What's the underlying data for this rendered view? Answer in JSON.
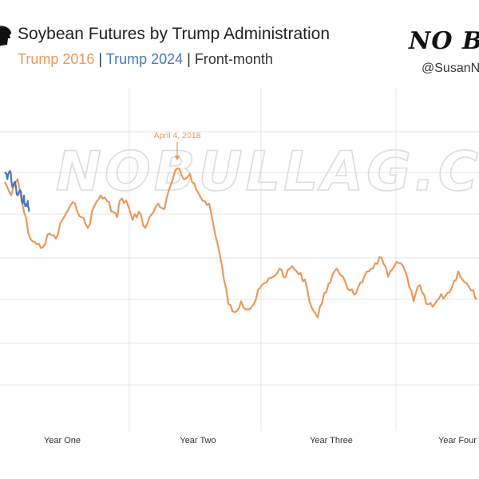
{
  "header": {
    "title": "Soybean Futures by Trump Administration",
    "subtitle_2016": "Trump 2016",
    "subtitle_sep1": " | ",
    "subtitle_2024": "Trump 2024",
    "subtitle_sep2": " | ",
    "subtitle_tail": "Front-month",
    "brand": "NO B",
    "handle": "@SusanN",
    "watermark": "NOBULLAG.COM"
  },
  "colors": {
    "trump2016": "#e9995b",
    "trump2024": "#4a78b8",
    "grid": "#e4e4e4"
  },
  "chart_data": {
    "type": "line",
    "title": "Soybean Futures by Trump Administration",
    "xlabel": "",
    "ylabel": "",
    "x_ticks": [
      "Year One",
      "Year Two",
      "Year Three",
      "Year Four"
    ],
    "grid": true,
    "annotations": [
      {
        "text": "April 4, 2018",
        "series": "Trump 2016"
      }
    ],
    "series": [
      {
        "name": "Trump 2016",
        "color": "#e9995b",
        "points": [
          [
            0.0,
            0.83
          ],
          [
            0.05,
            0.78
          ],
          [
            0.1,
            0.84
          ],
          [
            0.15,
            0.72
          ],
          [
            0.2,
            0.62
          ],
          [
            0.25,
            0.6
          ],
          [
            0.3,
            0.59
          ],
          [
            0.35,
            0.64
          ],
          [
            0.4,
            0.62
          ],
          [
            0.45,
            0.69
          ],
          [
            0.5,
            0.73
          ],
          [
            0.55,
            0.75
          ],
          [
            0.6,
            0.7
          ],
          [
            0.65,
            0.66
          ],
          [
            0.7,
            0.74
          ],
          [
            0.75,
            0.78
          ],
          [
            0.8,
            0.76
          ],
          [
            0.85,
            0.72
          ],
          [
            0.88,
            0.7
          ],
          [
            0.9,
            0.76
          ],
          [
            0.95,
            0.76
          ],
          [
            1.0,
            0.69
          ],
          [
            1.05,
            0.72
          ],
          [
            1.1,
            0.66
          ],
          [
            1.15,
            0.71
          ],
          [
            1.2,
            0.75
          ],
          [
            1.25,
            0.73
          ],
          [
            1.3,
            0.82
          ],
          [
            1.35,
            0.88
          ],
          [
            1.4,
            0.84
          ],
          [
            1.45,
            0.86
          ],
          [
            1.5,
            0.8
          ],
          [
            1.55,
            0.76
          ],
          [
            1.6,
            0.75
          ],
          [
            1.65,
            0.63
          ],
          [
            1.7,
            0.52
          ],
          [
            1.75,
            0.38
          ],
          [
            1.8,
            0.35
          ],
          [
            1.85,
            0.39
          ],
          [
            1.9,
            0.36
          ],
          [
            1.95,
            0.38
          ],
          [
            2.0,
            0.44
          ],
          [
            2.05,
            0.46
          ],
          [
            2.1,
            0.48
          ],
          [
            2.15,
            0.51
          ],
          [
            2.2,
            0.48
          ],
          [
            2.25,
            0.52
          ],
          [
            2.3,
            0.49
          ],
          [
            2.35,
            0.47
          ],
          [
            2.4,
            0.37
          ],
          [
            2.45,
            0.33
          ],
          [
            2.5,
            0.42
          ],
          [
            2.55,
            0.46
          ],
          [
            2.6,
            0.51
          ],
          [
            2.65,
            0.48
          ],
          [
            2.7,
            0.43
          ],
          [
            2.75,
            0.42
          ],
          [
            2.8,
            0.46
          ],
          [
            2.85,
            0.5
          ],
          [
            2.9,
            0.53
          ],
          [
            2.95,
            0.55
          ],
          [
            3.0,
            0.48
          ],
          [
            3.05,
            0.52
          ],
          [
            3.1,
            0.53
          ],
          [
            3.15,
            0.48
          ],
          [
            3.2,
            0.39
          ],
          [
            3.25,
            0.45
          ],
          [
            3.3,
            0.38
          ],
          [
            3.35,
            0.37
          ],
          [
            3.4,
            0.4
          ],
          [
            3.45,
            0.41
          ],
          [
            3.5,
            0.44
          ],
          [
            3.55,
            0.5
          ],
          [
            3.6,
            0.46
          ],
          [
            3.65,
            0.43
          ],
          [
            3.7,
            0.4
          ]
        ]
      },
      {
        "name": "Trump 2024",
        "color": "#4a78b8",
        "points": [
          [
            0.0,
            0.86
          ],
          [
            0.02,
            0.84
          ],
          [
            0.04,
            0.87
          ],
          [
            0.06,
            0.81
          ],
          [
            0.08,
            0.83
          ],
          [
            0.1,
            0.78
          ],
          [
            0.12,
            0.8
          ],
          [
            0.14,
            0.75
          ],
          [
            0.15,
            0.78
          ],
          [
            0.16,
            0.74
          ],
          [
            0.18,
            0.76
          ],
          [
            0.19,
            0.72
          ]
        ]
      }
    ]
  }
}
